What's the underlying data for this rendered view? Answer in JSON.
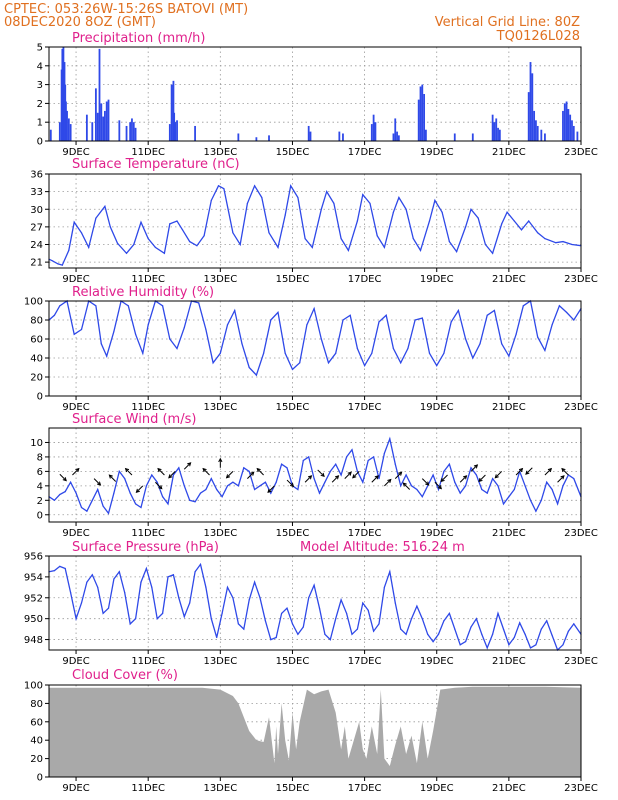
{
  "header": {
    "line1_left": "CPTEC:  053:26W-15:26S  BATOVI (MT)",
    "line2_left": "08DEC2020 8OZ (GMT)",
    "line1_right": "Vertical Grid Line: 80Z",
    "line2_right": "TQ0126L028"
  },
  "model_altitude": "Model Altitude: 516.24 m",
  "colors": {
    "header": "#e07020",
    "title": "#e0208c",
    "series": "#2f49e8",
    "cloud": "#a9a9a9"
  },
  "chart_data": [
    {
      "id": "precip",
      "type": "bar",
      "title": "Precipitation (mm/h)",
      "xrange": [
        8.25,
        23.0
      ],
      "ylim": [
        0,
        5
      ],
      "yticks": [
        0,
        1,
        2,
        3,
        4,
        5
      ],
      "xticks": [
        "9DEC",
        "11DEC",
        "13DEC",
        "15DEC",
        "17DEC",
        "19DEC",
        "21DEC",
        "23DEC"
      ],
      "grid": true,
      "x": [
        8.3,
        8.55,
        8.6,
        8.62,
        8.65,
        8.68,
        8.7,
        8.72,
        8.75,
        8.8,
        8.85,
        9.3,
        9.45,
        9.55,
        9.6,
        9.65,
        9.7,
        9.75,
        9.8,
        9.85,
        9.9,
        10.2,
        10.4,
        10.5,
        10.55,
        10.6,
        10.65,
        11.6,
        11.65,
        11.7,
        11.72,
        11.75,
        11.8,
        12.3,
        13.5,
        14.0,
        14.35,
        15.45,
        15.5,
        16.3,
        16.4,
        17.2,
        17.25,
        17.3,
        17.8,
        17.85,
        17.9,
        17.95,
        18.5,
        18.55,
        18.6,
        18.65,
        18.7,
        19.5,
        20.0,
        20.55,
        20.6,
        20.65,
        20.7,
        20.75,
        21.55,
        21.6,
        21.65,
        21.7,
        21.75,
        21.8,
        21.9,
        22.0,
        22.5,
        22.55,
        22.6,
        22.65,
        22.7,
        22.75,
        22.8,
        22.9
      ],
      "values": [
        0.6,
        1.0,
        3.8,
        4.9,
        5.0,
        4.2,
        3.0,
        2.1,
        1.6,
        1.2,
        0.9,
        1.4,
        1.0,
        2.8,
        1.5,
        4.9,
        2.0,
        1.3,
        1.6,
        2.1,
        2.2,
        1.1,
        0.8,
        1.0,
        1.2,
        1.0,
        0.7,
        0.9,
        3.0,
        3.2,
        1.5,
        1.0,
        1.1,
        0.8,
        0.4,
        0.2,
        0.3,
        0.8,
        0.5,
        0.5,
        0.4,
        0.9,
        1.4,
        1.0,
        0.4,
        1.2,
        0.5,
        0.3,
        2.2,
        2.9,
        3.0,
        2.5,
        0.6,
        0.4,
        0.4,
        1.4,
        1.0,
        1.2,
        0.7,
        0.6,
        2.6,
        4.2,
        3.6,
        1.6,
        1.1,
        0.8,
        0.6,
        0.4,
        1.6,
        2.0,
        2.1,
        1.7,
        1.4,
        1.1,
        0.8,
        0.5
      ]
    },
    {
      "id": "temp",
      "type": "line",
      "title": "Surface Temperature (nC)",
      "xrange": [
        8.25,
        23.0
      ],
      "ylim": [
        20,
        36
      ],
      "yticks": [
        21,
        24,
        27,
        30,
        33,
        36
      ],
      "xticks": [
        "9DEC",
        "11DEC",
        "13DEC",
        "15DEC",
        "17DEC",
        "19DEC",
        "21DEC",
        "23DEC"
      ],
      "grid": true,
      "x": [
        8.25,
        8.35,
        8.5,
        8.62,
        8.8,
        8.95,
        9.15,
        9.35,
        9.55,
        9.8,
        9.95,
        10.15,
        10.4,
        10.6,
        10.8,
        11.0,
        11.2,
        11.45,
        11.6,
        11.8,
        11.95,
        12.15,
        12.35,
        12.55,
        12.75,
        12.95,
        13.1,
        13.35,
        13.55,
        13.75,
        13.95,
        14.15,
        14.35,
        14.6,
        14.8,
        14.95,
        15.15,
        15.35,
        15.55,
        15.8,
        15.95,
        16.15,
        16.35,
        16.55,
        16.8,
        16.95,
        17.15,
        17.35,
        17.55,
        17.8,
        17.95,
        18.15,
        18.35,
        18.55,
        18.8,
        18.95,
        19.15,
        19.35,
        19.55,
        19.8,
        19.95,
        20.15,
        20.35,
        20.55,
        20.8,
        20.95,
        21.15,
        21.35,
        21.55,
        21.8,
        22.0,
        22.3,
        22.5,
        22.75,
        23.0
      ],
      "values": [
        21.5,
        21.2,
        20.7,
        20.5,
        23.0,
        27.8,
        26.0,
        23.5,
        28.5,
        30.5,
        27.0,
        24.2,
        22.5,
        24.0,
        27.8,
        25.0,
        23.5,
        22.5,
        27.5,
        28.0,
        26.5,
        24.5,
        23.8,
        25.5,
        31.5,
        34.0,
        33.5,
        26.0,
        24.0,
        31.0,
        34.0,
        32.0,
        26.0,
        23.5,
        29.0,
        34.0,
        32.0,
        25.0,
        23.5,
        30.0,
        33.0,
        31.0,
        25.0,
        23.0,
        28.0,
        32.5,
        31.0,
        25.5,
        23.5,
        29.5,
        32.0,
        30.0,
        25.0,
        23.0,
        28.0,
        31.5,
        29.5,
        24.5,
        22.8,
        27.0,
        30.0,
        28.5,
        24.0,
        22.5,
        27.5,
        29.5,
        28.0,
        26.5,
        28.0,
        26.0,
        25.0,
        24.3,
        24.5,
        24.0,
        23.8
      ]
    },
    {
      "id": "rh",
      "type": "line",
      "title": "Relative Humidity (%)",
      "xrange": [
        8.25,
        23.0
      ],
      "ylim": [
        0,
        100
      ],
      "yticks": [
        0,
        20,
        40,
        60,
        80,
        100
      ],
      "xticks": [
        "9DEC",
        "11DEC",
        "13DEC",
        "15DEC",
        "17DEC",
        "19DEC",
        "21DEC",
        "23DEC"
      ],
      "grid": true,
      "x": [
        8.25,
        8.4,
        8.55,
        8.75,
        8.95,
        9.15,
        9.35,
        9.55,
        9.7,
        9.85,
        10.05,
        10.25,
        10.45,
        10.65,
        10.85,
        11.0,
        11.2,
        11.4,
        11.6,
        11.8,
        12.0,
        12.2,
        12.4,
        12.6,
        12.8,
        13.0,
        13.2,
        13.4,
        13.6,
        13.8,
        14.0,
        14.2,
        14.4,
        14.6,
        14.8,
        15.0,
        15.2,
        15.4,
        15.6,
        15.8,
        16.0,
        16.2,
        16.4,
        16.6,
        16.8,
        17.0,
        17.2,
        17.4,
        17.6,
        17.8,
        18.0,
        18.2,
        18.4,
        18.6,
        18.8,
        19.0,
        19.2,
        19.4,
        19.6,
        19.8,
        20.0,
        20.2,
        20.4,
        20.6,
        20.8,
        21.0,
        21.2,
        21.4,
        21.6,
        21.8,
        22.0,
        22.2,
        22.4,
        22.6,
        22.8,
        23.0
      ],
      "values": [
        80,
        85,
        95,
        100,
        65,
        70,
        100,
        95,
        55,
        42,
        68,
        100,
        95,
        65,
        45,
        75,
        100,
        95,
        60,
        50,
        72,
        100,
        98,
        70,
        35,
        45,
        75,
        90,
        55,
        30,
        22,
        45,
        80,
        88,
        45,
        28,
        35,
        75,
        92,
        60,
        35,
        45,
        80,
        85,
        50,
        32,
        45,
        78,
        85,
        50,
        35,
        50,
        80,
        82,
        45,
        32,
        45,
        78,
        90,
        60,
        40,
        55,
        85,
        90,
        55,
        42,
        65,
        95,
        100,
        62,
        48,
        75,
        95,
        88,
        80,
        92
      ]
    },
    {
      "id": "wind",
      "type": "line",
      "title": "Surface Wind (m/s)",
      "xrange": [
        8.25,
        23.0
      ],
      "ylim": [
        -1,
        12
      ],
      "yticks": [
        0,
        2,
        4,
        6,
        8,
        10
      ],
      "xticks": [
        "9DEC",
        "11DEC",
        "13DEC",
        "15DEC",
        "17DEC",
        "19DEC",
        "21DEC",
        "23DEC"
      ],
      "grid": true,
      "x": [
        8.25,
        8.4,
        8.55,
        8.7,
        8.85,
        9.0,
        9.15,
        9.3,
        9.45,
        9.6,
        9.75,
        9.9,
        10.05,
        10.2,
        10.35,
        10.5,
        10.65,
        10.8,
        10.95,
        11.1,
        11.25,
        11.4,
        11.55,
        11.7,
        11.85,
        12.0,
        12.15,
        12.3,
        12.45,
        12.6,
        12.75,
        12.9,
        13.05,
        13.2,
        13.35,
        13.5,
        13.65,
        13.8,
        13.95,
        14.1,
        14.25,
        14.4,
        14.55,
        14.7,
        14.85,
        15.0,
        15.15,
        15.3,
        15.45,
        15.6,
        15.75,
        15.9,
        16.05,
        16.2,
        16.35,
        16.5,
        16.65,
        16.8,
        16.95,
        17.1,
        17.25,
        17.4,
        17.55,
        17.7,
        17.85,
        18.0,
        18.15,
        18.3,
        18.45,
        18.6,
        18.75,
        18.9,
        19.05,
        19.2,
        19.35,
        19.5,
        19.65,
        19.8,
        19.95,
        20.1,
        20.25,
        20.4,
        20.55,
        20.7,
        20.85,
        21.0,
        21.15,
        21.3,
        21.45,
        21.6,
        21.75,
        21.9,
        22.05,
        22.2,
        22.35,
        22.5,
        22.65,
        22.8,
        23.0
      ],
      "values": [
        2.5,
        2.0,
        2.8,
        3.2,
        4.5,
        3.0,
        1.0,
        0.5,
        2.0,
        3.5,
        1.2,
        0.2,
        3.0,
        6.0,
        5.0,
        3.0,
        1.5,
        1.0,
        4.0,
        5.5,
        4.5,
        2.5,
        1.5,
        5.5,
        6.5,
        4.0,
        2.0,
        1.8,
        3.0,
        3.5,
        5.0,
        3.5,
        2.5,
        4.0,
        4.5,
        4.0,
        6.5,
        6.0,
        3.5,
        4.0,
        4.5,
        3.0,
        4.5,
        7.0,
        6.5,
        4.0,
        3.5,
        7.5,
        8.0,
        5.0,
        3.0,
        4.5,
        6.0,
        7.0,
        5.5,
        8.0,
        9.0,
        6.0,
        4.5,
        7.5,
        8.0,
        5.0,
        8.5,
        10.5,
        7.0,
        4.0,
        5.5,
        4.0,
        3.5,
        2.5,
        4.0,
        5.5,
        3.5,
        6.0,
        7.0,
        4.5,
        3.0,
        4.0,
        6.5,
        5.5,
        3.5,
        3.0,
        5.0,
        4.0,
        1.5,
        2.5,
        3.5,
        6.0,
        4.0,
        2.0,
        0.5,
        2.0,
        4.5,
        3.5,
        1.5,
        4.0,
        5.5,
        5.0,
        2.5
      ],
      "arrows": [
        [
          8.55,
          5.6,
          1,
          -1
        ],
        [
          8.9,
          5.5,
          1,
          1
        ],
        [
          9.5,
          5.0,
          1,
          -1
        ],
        [
          10.1,
          4.6,
          -1,
          1
        ],
        [
          10.55,
          5.5,
          -1,
          1
        ],
        [
          10.85,
          4.0,
          -1,
          -1
        ],
        [
          11.2,
          4.5,
          1,
          -1
        ],
        [
          11.45,
          5.5,
          -1,
          1
        ],
        [
          11.75,
          6.0,
          -1,
          -1
        ],
        [
          12.0,
          6.3,
          1,
          1
        ],
        [
          12.7,
          5.5,
          -1,
          1
        ],
        [
          13.0,
          6.5,
          0,
          1
        ],
        [
          13.35,
          6.0,
          -1,
          -1
        ],
        [
          13.75,
          5.0,
          1,
          1
        ],
        [
          14.2,
          5.5,
          -1,
          1
        ],
        [
          14.5,
          4.0,
          -1,
          -1
        ],
        [
          14.85,
          4.8,
          1,
          -1
        ],
        [
          15.35,
          4.5,
          1,
          1
        ],
        [
          15.7,
          6.2,
          1,
          -1
        ],
        [
          16.1,
          4.5,
          1,
          1
        ],
        [
          16.45,
          5.0,
          1,
          1
        ],
        [
          16.85,
          6.0,
          -1,
          -1
        ],
        [
          17.2,
          4.5,
          1,
          1
        ],
        [
          17.55,
          4.0,
          1,
          1
        ],
        [
          17.85,
          5.0,
          1,
          1
        ],
        [
          18.25,
          3.5,
          -1,
          1
        ],
        [
          18.6,
          5.0,
          1,
          -1
        ],
        [
          18.95,
          4.5,
          1,
          -1
        ],
        [
          19.3,
          5.5,
          -1,
          -1
        ],
        [
          19.65,
          4.5,
          1,
          1
        ],
        [
          19.95,
          6.0,
          1,
          1
        ],
        [
          20.35,
          5.5,
          -1,
          -1
        ],
        [
          20.8,
          6.0,
          -1,
          -1
        ],
        [
          21.2,
          5.5,
          1,
          1
        ],
        [
          21.65,
          6.5,
          -1,
          -1
        ],
        [
          22.0,
          5.5,
          1,
          1
        ],
        [
          22.35,
          4.5,
          1,
          1
        ],
        [
          22.65,
          5.5,
          -1,
          1
        ]
      ]
    },
    {
      "id": "pressure",
      "type": "line",
      "title": "Surface Pressure (hPa)",
      "xrange": [
        8.25,
        23.0
      ],
      "ylim": [
        947,
        956
      ],
      "yticks": [
        948,
        950,
        952,
        954,
        956
      ],
      "xticks": [
        "9DEC",
        "11DEC",
        "13DEC",
        "15DEC",
        "17DEC",
        "19DEC",
        "21DEC",
        "23DEC"
      ],
      "grid": true,
      "x": [
        8.25,
        8.4,
        8.55,
        8.7,
        8.85,
        9.0,
        9.15,
        9.3,
        9.45,
        9.6,
        9.75,
        9.9,
        10.05,
        10.2,
        10.35,
        10.5,
        10.65,
        10.8,
        10.95,
        11.1,
        11.25,
        11.4,
        11.55,
        11.7,
        11.85,
        12.0,
        12.15,
        12.3,
        12.45,
        12.6,
        12.75,
        12.9,
        13.05,
        13.2,
        13.35,
        13.5,
        13.65,
        13.8,
        13.95,
        14.1,
        14.25,
        14.4,
        14.55,
        14.7,
        14.85,
        15.0,
        15.15,
        15.3,
        15.45,
        15.6,
        15.75,
        15.9,
        16.05,
        16.2,
        16.35,
        16.5,
        16.65,
        16.8,
        16.95,
        17.1,
        17.25,
        17.4,
        17.55,
        17.7,
        17.85,
        18.0,
        18.15,
        18.3,
        18.45,
        18.6,
        18.75,
        18.9,
        19.05,
        19.2,
        19.35,
        19.5,
        19.65,
        19.8,
        19.95,
        20.1,
        20.25,
        20.4,
        20.55,
        20.7,
        20.85,
        21.0,
        21.15,
        21.3,
        21.45,
        21.6,
        21.75,
        21.9,
        22.05,
        22.2,
        22.35,
        22.5,
        22.65,
        22.8,
        23.0
      ],
      "values": [
        954.5,
        954.6,
        955.0,
        954.8,
        952.5,
        950.0,
        951.5,
        953.5,
        954.2,
        953.0,
        950.5,
        951.0,
        953.8,
        954.5,
        952.5,
        949.5,
        950.0,
        953.5,
        954.8,
        953.0,
        950.0,
        950.5,
        954.0,
        954.2,
        952.0,
        950.2,
        951.5,
        954.5,
        955.2,
        953.0,
        950.0,
        948.2,
        950.5,
        953.0,
        952.0,
        949.5,
        949.0,
        951.8,
        953.5,
        952.0,
        949.8,
        948.0,
        948.2,
        950.5,
        951.0,
        949.5,
        948.5,
        949.2,
        952.0,
        953.2,
        951.0,
        948.5,
        948.0,
        950.0,
        951.8,
        950.5,
        948.5,
        949.0,
        951.5,
        950.8,
        948.8,
        949.5,
        953.0,
        954.5,
        951.5,
        949.0,
        948.5,
        950.0,
        951.2,
        950.0,
        948.5,
        947.8,
        948.5,
        949.8,
        950.5,
        949.0,
        947.5,
        947.8,
        949.2,
        950.0,
        948.5,
        947.2,
        948.5,
        950.5,
        949.0,
        947.5,
        948.2,
        949.6,
        948.5,
        947.2,
        947.5,
        949.0,
        949.8,
        948.4,
        947.0,
        947.5,
        948.8,
        949.5,
        948.5
      ]
    },
    {
      "id": "cloud",
      "type": "area",
      "title": "Cloud Cover (%)",
      "xrange": [
        8.25,
        23.0
      ],
      "ylim": [
        0,
        100
      ],
      "yticks": [
        0,
        20,
        40,
        60,
        80,
        100
      ],
      "xticks": [
        "9DEC",
        "11DEC",
        "13DEC",
        "15DEC",
        "17DEC",
        "19DEC",
        "21DEC",
        "23DEC"
      ],
      "grid": true,
      "x": [
        8.25,
        9.0,
        10.0,
        11.0,
        12.0,
        12.5,
        13.0,
        13.35,
        13.5,
        13.8,
        14.0,
        14.2,
        14.35,
        14.5,
        14.55,
        14.6,
        14.7,
        14.8,
        14.9,
        15.0,
        15.1,
        15.2,
        15.4,
        15.6,
        15.8,
        16.0,
        16.2,
        16.35,
        16.45,
        16.55,
        16.7,
        16.85,
        16.95,
        17.05,
        17.2,
        17.35,
        17.45,
        17.55,
        17.7,
        17.85,
        18.0,
        18.15,
        18.3,
        18.45,
        18.6,
        18.75,
        18.9,
        19.1,
        19.5,
        20.0,
        21.0,
        22.0,
        23.0
      ],
      "values": [
        97,
        97,
        97,
        97,
        97,
        97,
        95,
        88,
        80,
        50,
        40,
        38,
        65,
        15,
        55,
        25,
        80,
        40,
        18,
        70,
        30,
        60,
        95,
        90,
        93,
        95,
        70,
        30,
        55,
        20,
        40,
        60,
        30,
        20,
        55,
        25,
        95,
        20,
        12,
        35,
        55,
        25,
        45,
        15,
        60,
        20,
        50,
        95,
        97,
        98,
        98,
        98,
        97
      ]
    }
  ]
}
